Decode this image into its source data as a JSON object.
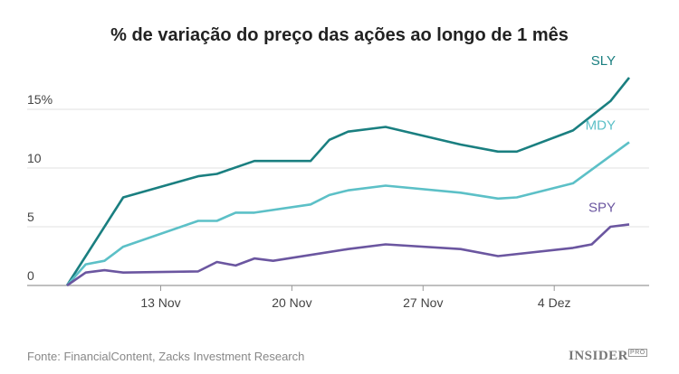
{
  "title": "% de variação do preço das ações ao longo de 1 mês",
  "source": "Fonte: FinancialContent, Zacks Investment Research",
  "logo": {
    "main": "INSIDER",
    "sup": "PRO"
  },
  "chart_data": {
    "type": "line",
    "title": "% de variação do preço das ações ao longo de 1 mês",
    "xlabel": "",
    "ylabel": "",
    "ylim": [
      0,
      18
    ],
    "xlim": [
      "08 Nov",
      "09 Dez"
    ],
    "grid": true,
    "yticks": [
      {
        "value": 0,
        "label": "0"
      },
      {
        "value": 5,
        "label": "5"
      },
      {
        "value": 10,
        "label": "10"
      },
      {
        "value": 15,
        "label": "15%"
      }
    ],
    "xticks": [
      {
        "value": "13 Nov",
        "label": "13 Nov"
      },
      {
        "value": "20 Nov",
        "label": "20 Nov"
      },
      {
        "value": "27 Nov",
        "label": "27 Nov"
      },
      {
        "value": "04 Dez",
        "label": "4 Dez"
      }
    ],
    "legend": "inline labels at line ends",
    "series": [
      {
        "name": "SLY",
        "color": "#1a7f80",
        "x": [
          "08 Nov",
          "11 Nov",
          "15 Nov",
          "16 Nov",
          "18 Nov",
          "21 Nov",
          "22 Nov",
          "23 Nov",
          "25 Nov",
          "29 Nov",
          "01 Dez",
          "02 Dez",
          "05 Dez",
          "07 Dez",
          "08 Dez"
        ],
        "y": [
          0,
          7.5,
          9.3,
          9.5,
          10.6,
          10.6,
          12.4,
          13.1,
          13.5,
          12.0,
          11.4,
          11.4,
          13.2,
          15.7,
          17.7
        ]
      },
      {
        "name": "MDY",
        "color": "#5cc0c7",
        "x": [
          "08 Nov",
          "09 Nov",
          "10 Nov",
          "11 Nov",
          "15 Nov",
          "16 Nov",
          "17 Nov",
          "18 Nov",
          "21 Nov",
          "22 Nov",
          "23 Nov",
          "25 Nov",
          "29 Nov",
          "01 Dez",
          "02 Dez",
          "05 Dez",
          "08 Dez"
        ],
        "y": [
          0,
          1.8,
          2.1,
          3.3,
          5.5,
          5.5,
          6.2,
          6.2,
          6.9,
          7.7,
          8.1,
          8.5,
          7.9,
          7.4,
          7.5,
          8.7,
          12.2
        ]
      },
      {
        "name": "SPY",
        "color": "#6b56a0",
        "x": [
          "08 Nov",
          "09 Nov",
          "10 Nov",
          "11 Nov",
          "15 Nov",
          "16 Nov",
          "17 Nov",
          "18 Nov",
          "19 Nov",
          "23 Nov",
          "25 Nov",
          "29 Nov",
          "01 Dez",
          "05 Dez",
          "06 Dez",
          "07 Dez",
          "08 Dez"
        ],
        "y": [
          0,
          1.1,
          1.3,
          1.1,
          1.2,
          2.0,
          1.7,
          2.3,
          2.1,
          3.1,
          3.5,
          3.1,
          2.5,
          3.2,
          3.5,
          5.0,
          5.2
        ]
      }
    ]
  }
}
